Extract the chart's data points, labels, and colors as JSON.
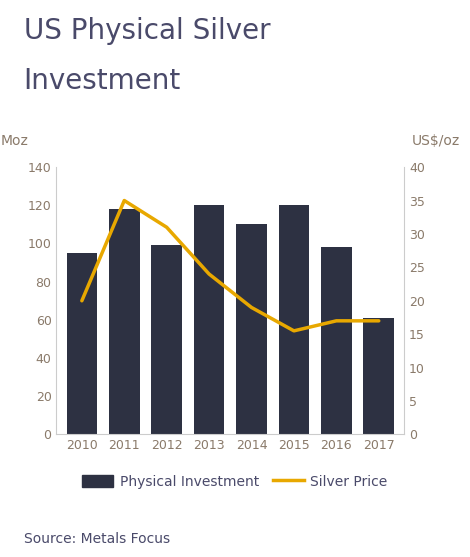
{
  "title_line1": "US Physical Silver",
  "title_line2": "Investment",
  "years": [
    2010,
    2011,
    2012,
    2013,
    2014,
    2015,
    2016,
    2017
  ],
  "bar_values": [
    95,
    118,
    99,
    120,
    110,
    120,
    98,
    61
  ],
  "silver_price": [
    20,
    35,
    31,
    24,
    19,
    15.5,
    17,
    17
  ],
  "bar_color": "#2d3142",
  "line_color": "#e8a800",
  "left_axis_label": "Moz",
  "right_axis_label": "US$/oz",
  "left_ylim": [
    0,
    140
  ],
  "right_ylim": [
    0,
    40
  ],
  "left_yticks": [
    0,
    20,
    40,
    60,
    80,
    100,
    120,
    140
  ],
  "right_yticks": [
    0,
    5,
    10,
    15,
    20,
    25,
    30,
    35,
    40
  ],
  "legend_bar_label": "Physical Investment",
  "legend_line_label": "Silver Price",
  "source_text": "Source: Metals Focus",
  "title_fontsize": 20,
  "axis_label_fontsize": 10,
  "tick_fontsize": 9,
  "source_fontsize": 10,
  "legend_fontsize": 10,
  "background_color": "#ffffff",
  "text_color": "#4a4a6a",
  "tick_color": "#8a7a6a"
}
